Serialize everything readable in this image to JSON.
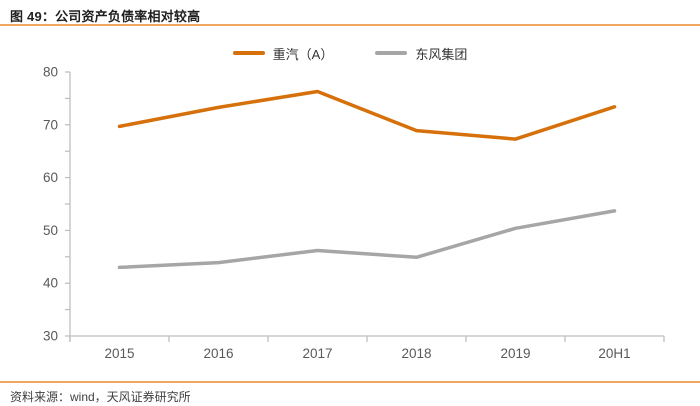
{
  "header": {
    "title": "图 49：公司资产负债率相对较高"
  },
  "footer": {
    "source_label": "资料来源：wind，天风证券研究所"
  },
  "colors": {
    "accent_orange": "#D6700A",
    "series_gray": "#A6A6A6",
    "divider_orange": "#F0A560",
    "axis_line": "#BFBFBF",
    "axis_text": "#595959",
    "title_text": "#1F1F1F",
    "footer_text": "#404040"
  },
  "chart_data": {
    "type": "line",
    "title": "公司资产负债率相对较高",
    "categories": [
      "2015",
      "2016",
      "2017",
      "2018",
      "2019",
      "20H1"
    ],
    "series": [
      {
        "name": "重汽（A）",
        "color": "#D6700A",
        "values": [
          69.7,
          73.3,
          76.3,
          68.9,
          67.3,
          73.4
        ]
      },
      {
        "name": "东风集团",
        "color": "#A6A6A6",
        "values": [
          43.0,
          43.9,
          46.2,
          44.9,
          50.4,
          53.7
        ]
      }
    ],
    "xlabel": "",
    "ylabel": "",
    "ylim": [
      30,
      80
    ],
    "y_tick_step": 10,
    "y_minor_tick_step": 5,
    "grid": false,
    "legend_position": "top-center"
  }
}
